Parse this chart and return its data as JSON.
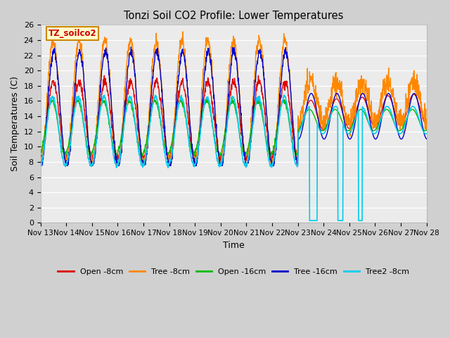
{
  "title": "Tonzi Soil CO2 Profile: Lower Temperatures",
  "xlabel": "Time",
  "ylabel": "Soil Temperatures (C)",
  "ylim": [
    0,
    26
  ],
  "yticks": [
    0,
    2,
    4,
    6,
    8,
    10,
    12,
    14,
    16,
    18,
    20,
    22,
    24,
    26
  ],
  "fig_bg_color": "#d0d0d0",
  "plot_bg_color": "#ebebeb",
  "annotation_text": "TZ_soilco2",
  "annotation_color": "#cc0000",
  "annotation_bg": "#ffffcc",
  "annotation_border": "#cc8800",
  "series_colors": {
    "open8": "#dd0000",
    "tree8": "#ff8800",
    "open16": "#00bb00",
    "tree16": "#0000cc",
    "tree2_8": "#00ccee"
  },
  "series_labels": [
    "Open -8cm",
    "Tree -8cm",
    "Open -16cm",
    "Tree -16cm",
    "Tree2 -8cm"
  ],
  "x_tick_labels": [
    "Nov 13",
    "Nov 14",
    "Nov 15",
    "Nov 16",
    "Nov 17",
    "Nov 18",
    "Nov 19",
    "Nov 20",
    "Nov 21",
    "Nov 22",
    "Nov 23",
    "Nov 24",
    "Nov 25",
    "Nov 26",
    "Nov 27",
    "Nov 28"
  ],
  "n_points": 1500,
  "n_days": 15
}
